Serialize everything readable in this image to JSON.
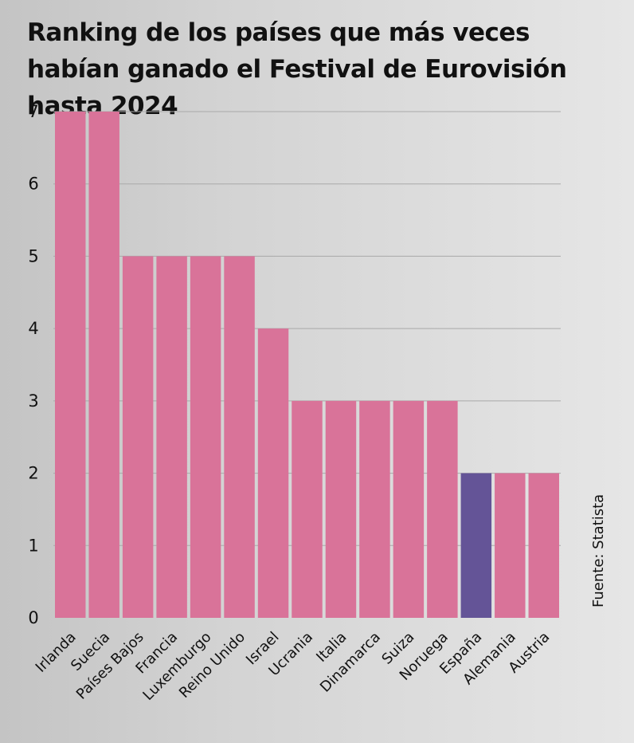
{
  "chart_data": {
    "type": "bar",
    "title": "Ranking de los países que más veces habían ganado el Festival de Eurovisión hasta 2024",
    "categories": [
      "Irlanda",
      "Suecia",
      "Países Bajos",
      "Francia",
      "Luxemburgo",
      "Reino Unido",
      "Israel",
      "Ucrania",
      "Italia",
      "Dinamarca",
      "Suiza",
      "Noruega",
      "España",
      "Alemania",
      "Austria"
    ],
    "values": [
      7,
      7,
      5,
      5,
      5,
      5,
      4,
      3,
      3,
      3,
      3,
      3,
      2,
      2,
      2
    ],
    "highlight": "España",
    "ylim": [
      0,
      7
    ],
    "yticks": [
      0,
      1,
      2,
      3,
      4,
      5,
      6,
      7
    ],
    "grid": true,
    "xlabel": "",
    "ylabel": "",
    "source": "Fuente: Statista",
    "colors": {
      "bar": "#d97399",
      "highlight": "#645497",
      "grid": "#a9a9a9"
    }
  }
}
